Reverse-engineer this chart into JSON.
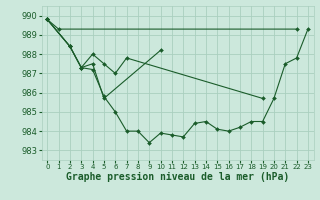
{
  "background_color": "#cce8dc",
  "grid_color": "#aacfbf",
  "line_color": "#1a5c2a",
  "marker_color": "#1a5c2a",
  "xlabel": "Graphe pression niveau de la mer (hPa)",
  "xlabel_fontsize": 7,
  "ylabel_ticks": [
    983,
    984,
    985,
    986,
    987,
    988,
    989,
    990
  ],
  "ylim": [
    982.5,
    990.5
  ],
  "xlim": [
    -0.5,
    23.5
  ],
  "xticks": [
    0,
    1,
    2,
    3,
    4,
    5,
    6,
    7,
    8,
    9,
    10,
    11,
    12,
    13,
    14,
    15,
    16,
    17,
    18,
    19,
    20,
    21,
    22,
    23
  ],
  "series": [
    [
      989.8,
      989.3,
      null,
      null,
      null,
      null,
      null,
      null,
      null,
      null,
      null,
      null,
      null,
      null,
      null,
      null,
      null,
      null,
      null,
      null,
      null,
      null,
      989.3,
      null
    ],
    [
      989.8,
      null,
      988.4,
      987.3,
      987.5,
      985.7,
      null,
      null,
      null,
      null,
      988.2,
      null,
      null,
      null,
      null,
      null,
      null,
      null,
      null,
      null,
      null,
      null,
      null,
      null
    ],
    [
      989.8,
      null,
      988.4,
      987.3,
      987.2,
      985.8,
      985.0,
      984.0,
      984.0,
      983.4,
      983.9,
      983.8,
      983.7,
      984.4,
      984.5,
      984.1,
      984.0,
      984.2,
      984.5,
      984.5,
      985.7,
      987.5,
      987.8,
      989.3
    ],
    [
      989.8,
      null,
      988.4,
      987.3,
      988.0,
      987.5,
      987.0,
      987.8,
      null,
      null,
      null,
      null,
      null,
      null,
      null,
      null,
      null,
      null,
      null,
      985.7,
      null,
      null,
      null,
      null
    ]
  ]
}
